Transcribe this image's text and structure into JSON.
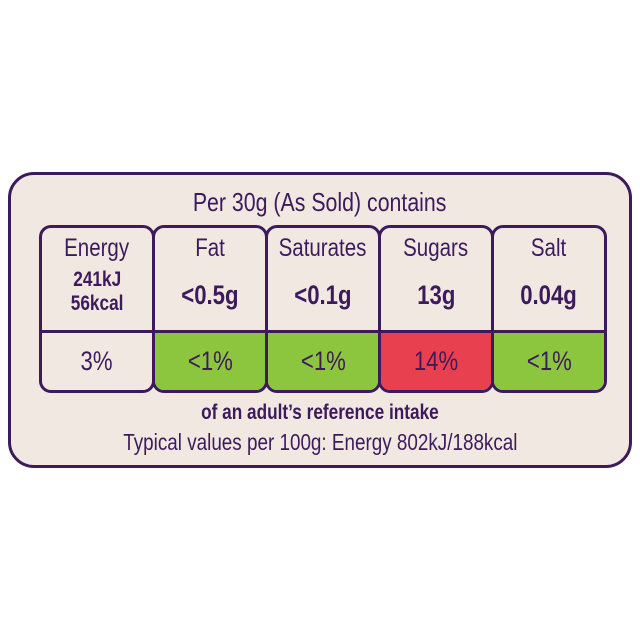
{
  "heading": "Per 30g (As Sold) contains",
  "colors": {
    "border": "#3d1a5b",
    "background": "#f1e8e1",
    "low": "#8cc63e",
    "high": "#e8404f",
    "neutral": "#f1e8e1"
  },
  "nutrients": [
    {
      "name": "Energy",
      "amount": "241kJ",
      "amount2": "56kcal",
      "percent": "3%",
      "level": "neutral"
    },
    {
      "name": "Fat",
      "amount": "<0.5g",
      "percent": "<1%",
      "level": "low"
    },
    {
      "name": "Saturates",
      "amount": "<0.1g",
      "percent": "<1%",
      "level": "low"
    },
    {
      "name": "Sugars",
      "amount": "13g",
      "percent": "14%",
      "level": "high"
    },
    {
      "name": "Salt",
      "amount": "0.04g",
      "percent": "<1%",
      "level": "low"
    }
  ],
  "footer": {
    "reference": "of an adult’s reference intake",
    "typical": "Typical values per 100g: Energy 802kJ/188kcal"
  }
}
